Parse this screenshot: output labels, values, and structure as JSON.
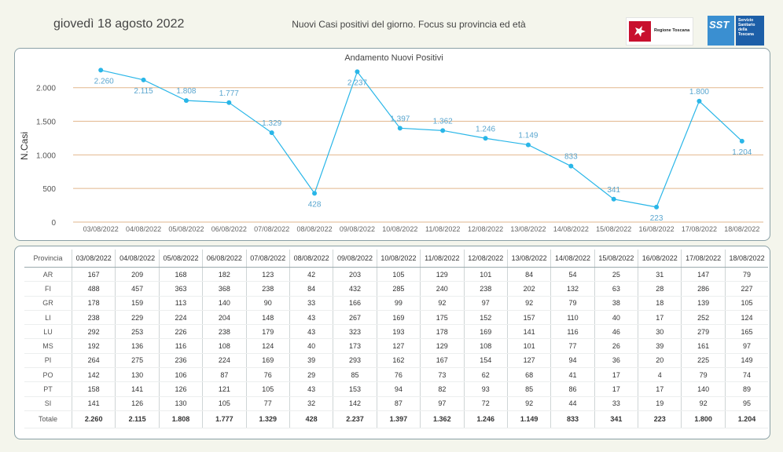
{
  "header": {
    "date": "giovedì 18 agosto 2022",
    "title": "Nuovi Casi positivi del giorno. Focus su provincia ed età",
    "logo_rt_text": "Regione Toscana",
    "logo_sst_text": "SST",
    "logo_sst_side": "Servizio\nSanitario\ndella\nToscana"
  },
  "chart_data": {
    "type": "line",
    "title": "Andamento Nuovi Positivi",
    "ylabel": "N.Casi",
    "xlabel": "",
    "categories": [
      "03/08/2022",
      "04/08/2022",
      "05/08/2022",
      "06/08/2022",
      "07/08/2022",
      "08/08/2022",
      "09/08/2022",
      "10/08/2022",
      "11/08/2022",
      "12/08/2022",
      "13/08/2022",
      "14/08/2022",
      "15/08/2022",
      "16/08/2022",
      "17/08/2022",
      "18/08/2022"
    ],
    "values": [
      2260,
      2115,
      1808,
      1777,
      1329,
      428,
      2237,
      1397,
      1362,
      1246,
      1149,
      833,
      341,
      223,
      1800,
      1204
    ],
    "value_labels": [
      "2.260",
      "2.115",
      "1.808",
      "1.777",
      "1.329",
      "428",
      "2.237",
      "1.397",
      "1.362",
      "1.246",
      "1.149",
      "833",
      "341",
      "223",
      "1.800",
      "1.204"
    ],
    "label_position": [
      "below",
      "below",
      "above",
      "above",
      "above",
      "below",
      "below",
      "above",
      "above",
      "above",
      "above",
      "above",
      "above",
      "below",
      "above",
      "below"
    ],
    "yticks": [
      0,
      500,
      1000,
      1500,
      2000
    ],
    "ytick_labels": [
      "0",
      "500",
      "1.000",
      "1.500",
      "2.000"
    ],
    "ylim": [
      0,
      2300
    ],
    "grid": true,
    "line_color": "#29b6e8",
    "grid_color": "#e2b78e",
    "label_color": "#5aa6cf"
  },
  "table": {
    "header_label": "Provincia",
    "rows": [
      {
        "prov": "AR",
        "values": [
          "167",
          "209",
          "168",
          "182",
          "123",
          "42",
          "203",
          "105",
          "129",
          "101",
          "84",
          "54",
          "25",
          "31",
          "147",
          "79"
        ]
      },
      {
        "prov": "FI",
        "values": [
          "488",
          "457",
          "363",
          "368",
          "238",
          "84",
          "432",
          "285",
          "240",
          "238",
          "202",
          "132",
          "63",
          "28",
          "286",
          "227"
        ]
      },
      {
        "prov": "GR",
        "values": [
          "178",
          "159",
          "113",
          "140",
          "90",
          "33",
          "166",
          "99",
          "92",
          "97",
          "92",
          "79",
          "38",
          "18",
          "139",
          "105"
        ]
      },
      {
        "prov": "LI",
        "values": [
          "238",
          "229",
          "224",
          "204",
          "148",
          "43",
          "267",
          "169",
          "175",
          "152",
          "157",
          "110",
          "40",
          "17",
          "252",
          "124"
        ]
      },
      {
        "prov": "LU",
        "values": [
          "292",
          "253",
          "226",
          "238",
          "179",
          "43",
          "323",
          "193",
          "178",
          "169",
          "141",
          "116",
          "46",
          "30",
          "279",
          "165"
        ]
      },
      {
        "prov": "MS",
        "values": [
          "192",
          "136",
          "116",
          "108",
          "124",
          "40",
          "173",
          "127",
          "129",
          "108",
          "101",
          "77",
          "26",
          "39",
          "161",
          "97"
        ]
      },
      {
        "prov": "PI",
        "values": [
          "264",
          "275",
          "236",
          "224",
          "169",
          "39",
          "293",
          "162",
          "167",
          "154",
          "127",
          "94",
          "36",
          "20",
          "225",
          "149"
        ]
      },
      {
        "prov": "PO",
        "values": [
          "142",
          "130",
          "106",
          "87",
          "76",
          "29",
          "85",
          "76",
          "73",
          "62",
          "68",
          "41",
          "17",
          "4",
          "79",
          "74"
        ]
      },
      {
        "prov": "PT",
        "values": [
          "158",
          "141",
          "126",
          "121",
          "105",
          "43",
          "153",
          "94",
          "82",
          "93",
          "85",
          "86",
          "17",
          "17",
          "140",
          "89"
        ]
      },
      {
        "prov": "SI",
        "values": [
          "141",
          "126",
          "130",
          "105",
          "77",
          "32",
          "142",
          "87",
          "97",
          "72",
          "92",
          "44",
          "33",
          "19",
          "92",
          "95"
        ]
      }
    ],
    "total": {
      "prov": "Totale",
      "values": [
        "2.260",
        "2.115",
        "1.808",
        "1.777",
        "1.329",
        "428",
        "2.237",
        "1.397",
        "1.362",
        "1.246",
        "1.149",
        "833",
        "341",
        "223",
        "1.800",
        "1.204"
      ]
    }
  }
}
